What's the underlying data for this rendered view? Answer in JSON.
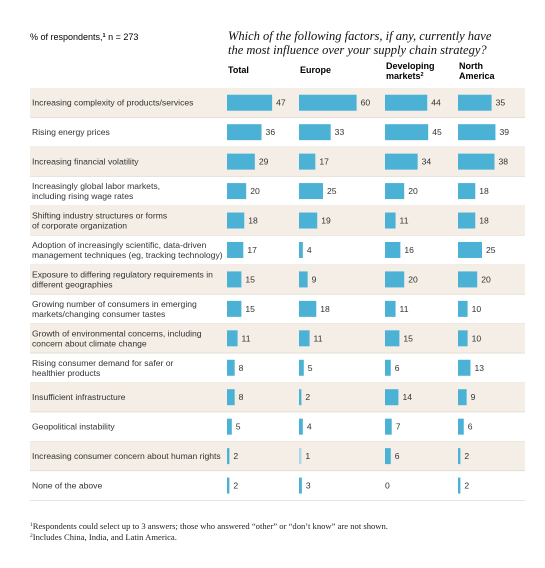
{
  "header": {
    "respondents_prefix": "% of respondents,",
    "respondents_sup": "1",
    "respondents_suffix": " n = 273",
    "question_line1": "Which of the following factors, if any, currently have",
    "question_line2": "the most influence over your supply chain strategy?"
  },
  "columns": [
    {
      "line1": "Total",
      "line2": "",
      "sup": ""
    },
    {
      "line1": "Europe",
      "line2": "",
      "sup": ""
    },
    {
      "line1": "Developing",
      "line2": "markets",
      "sup": "2"
    },
    {
      "line1": "North",
      "line2": "America",
      "sup": ""
    }
  ],
  "chart_data": {
    "type": "bar",
    "categories": [
      [
        "Increasing complexity of products/services"
      ],
      [
        "Rising energy prices"
      ],
      [
        "Increasing financial volatility"
      ],
      [
        "Increasingly global labor markets,",
        "including rising wage rates"
      ],
      [
        "Shifting industry structures or forms",
        "of corporate organization"
      ],
      [
        "Adoption of increasingly scientific, data-driven",
        "management techniques (eg, tracking technology)"
      ],
      [
        "Exposure to differing regulatory requirements in",
        "different geographies"
      ],
      [
        "Growing number of consumers in emerging",
        "markets/changing consumer tastes"
      ],
      [
        "Growth of environmental concerns, including",
        "concern about climate change"
      ],
      [
        "Rising consumer demand for safer or",
        "healthier products"
      ],
      [
        "Insufficient infrastructure"
      ],
      [
        "Geopolitical instability"
      ],
      [
        "Increasing consumer concern about human rights"
      ],
      [
        "None of the above"
      ]
    ],
    "series": [
      {
        "name": "Total",
        "values": [
          47,
          36,
          29,
          20,
          18,
          17,
          15,
          15,
          11,
          8,
          8,
          5,
          2,
          2
        ]
      },
      {
        "name": "Europe",
        "values": [
          60,
          33,
          17,
          25,
          19,
          4,
          9,
          18,
          11,
          5,
          2,
          4,
          1,
          3
        ]
      },
      {
        "name": "Developing markets",
        "values": [
          44,
          45,
          34,
          20,
          11,
          16,
          20,
          11,
          15,
          6,
          14,
          7,
          6,
          0
        ]
      },
      {
        "name": "North America",
        "values": [
          35,
          39,
          38,
          18,
          18,
          25,
          20,
          10,
          10,
          13,
          9,
          6,
          2,
          2
        ]
      }
    ],
    "bar_color": "#4bb2d6",
    "faint_bar_color": "#a9d8ea",
    "band_color": "#f4eee6",
    "separator_color": "#d9d2c7"
  },
  "footnotes": [
    {
      "sup": "1",
      "text": "Respondents could select up to 3 answers; those who answered “other” or “don’t know” are not shown."
    },
    {
      "sup": "2",
      "text": "Includes China, India, and Latin America."
    }
  ]
}
